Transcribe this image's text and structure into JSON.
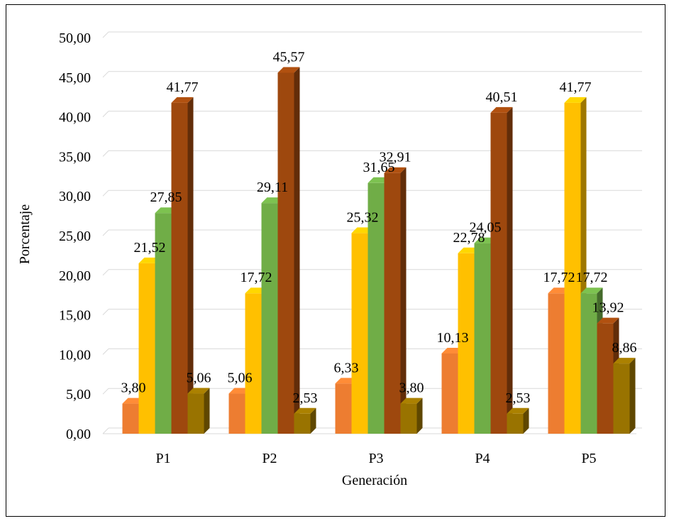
{
  "chart_data": {
    "type": "bar",
    "style": "3d-clustered-column",
    "title": "",
    "xlabel": "Generación",
    "ylabel": "Porcentaje",
    "ylim": [
      0,
      50
    ],
    "yticks": [
      "0,00",
      "5,00",
      "10,00",
      "15,00",
      "20,00",
      "25,00",
      "30,00",
      "35,00",
      "40,00",
      "45,00",
      "50,00"
    ],
    "grid": true,
    "legend": "none",
    "categories": [
      "P1",
      "P2",
      "P3",
      "P4",
      "P5"
    ],
    "series": [
      {
        "color": "#ED7D31",
        "values": [
          3.8,
          5.06,
          6.33,
          10.13,
          17.72
        ],
        "labels": [
          "3,80",
          "5,06",
          "6,33",
          "10,13",
          "17,72"
        ]
      },
      {
        "color": "#FFC000",
        "values": [
          21.52,
          17.72,
          25.32,
          22.78,
          41.77
        ],
        "labels": [
          "21,52",
          "17,72",
          "25,32",
          "22,78",
          "41,77"
        ]
      },
      {
        "color": "#70AD47",
        "values": [
          27.85,
          29.11,
          31.65,
          24.05,
          17.72
        ],
        "labels": [
          "27,85",
          "29,11",
          "31,65",
          "24,05",
          "17,72"
        ]
      },
      {
        "color": "#9E480E",
        "values": [
          41.77,
          45.57,
          32.91,
          40.51,
          13.92
        ],
        "labels": [
          "41,77",
          "45,57",
          "32,91",
          "40,51",
          "13,92"
        ]
      },
      {
        "color": "#997300",
        "values": [
          5.06,
          2.53,
          3.8,
          2.53,
          8.86
        ],
        "labels": [
          "5,06",
          "2,53",
          "3,80",
          "2,53",
          "8,86"
        ]
      }
    ]
  }
}
